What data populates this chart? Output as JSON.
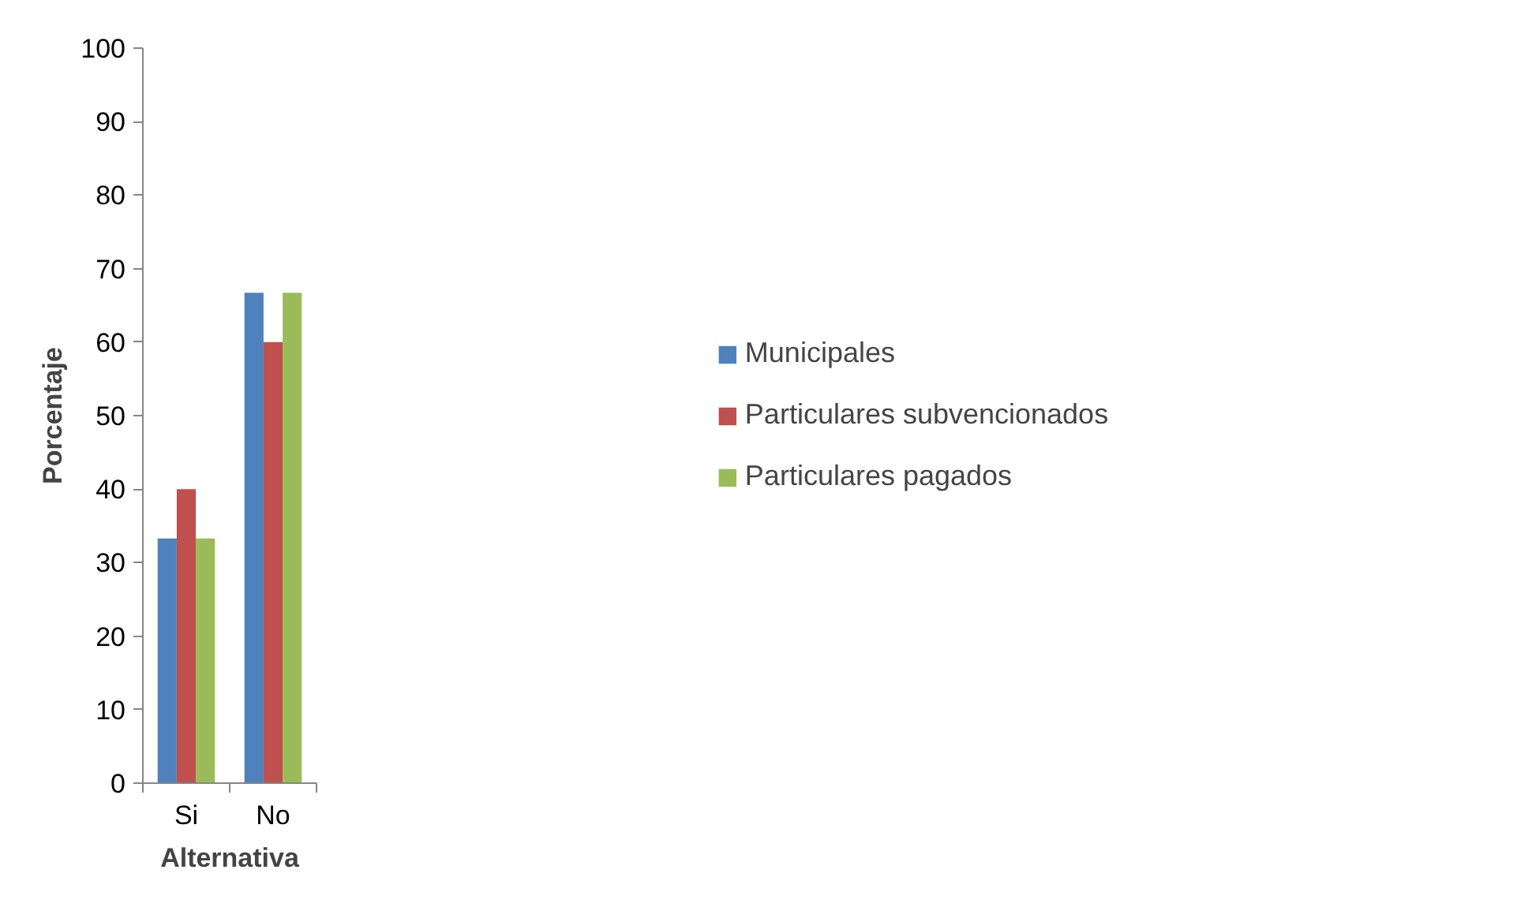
{
  "chart_data": {
    "type": "bar",
    "xlabel": "Alternativa",
    "ylabel": "Porcentaje",
    "categories": [
      "Si",
      "No"
    ],
    "series": [
      {
        "name": "Municipales",
        "color": "#4f81bd",
        "values": [
          33.3,
          66.7
        ]
      },
      {
        "name": "Particulares subvencionados",
        "color": "#c0504d",
        "values": [
          40,
          60
        ]
      },
      {
        "name": "Particulares pagados",
        "color": "#9bbb59",
        "values": [
          33.3,
          66.7
        ]
      }
    ],
    "ylim": [
      0,
      100
    ],
    "yticks": [
      0,
      10,
      20,
      30,
      40,
      50,
      60,
      70,
      80,
      90,
      100
    ],
    "grid": false,
    "legend": "right"
  }
}
